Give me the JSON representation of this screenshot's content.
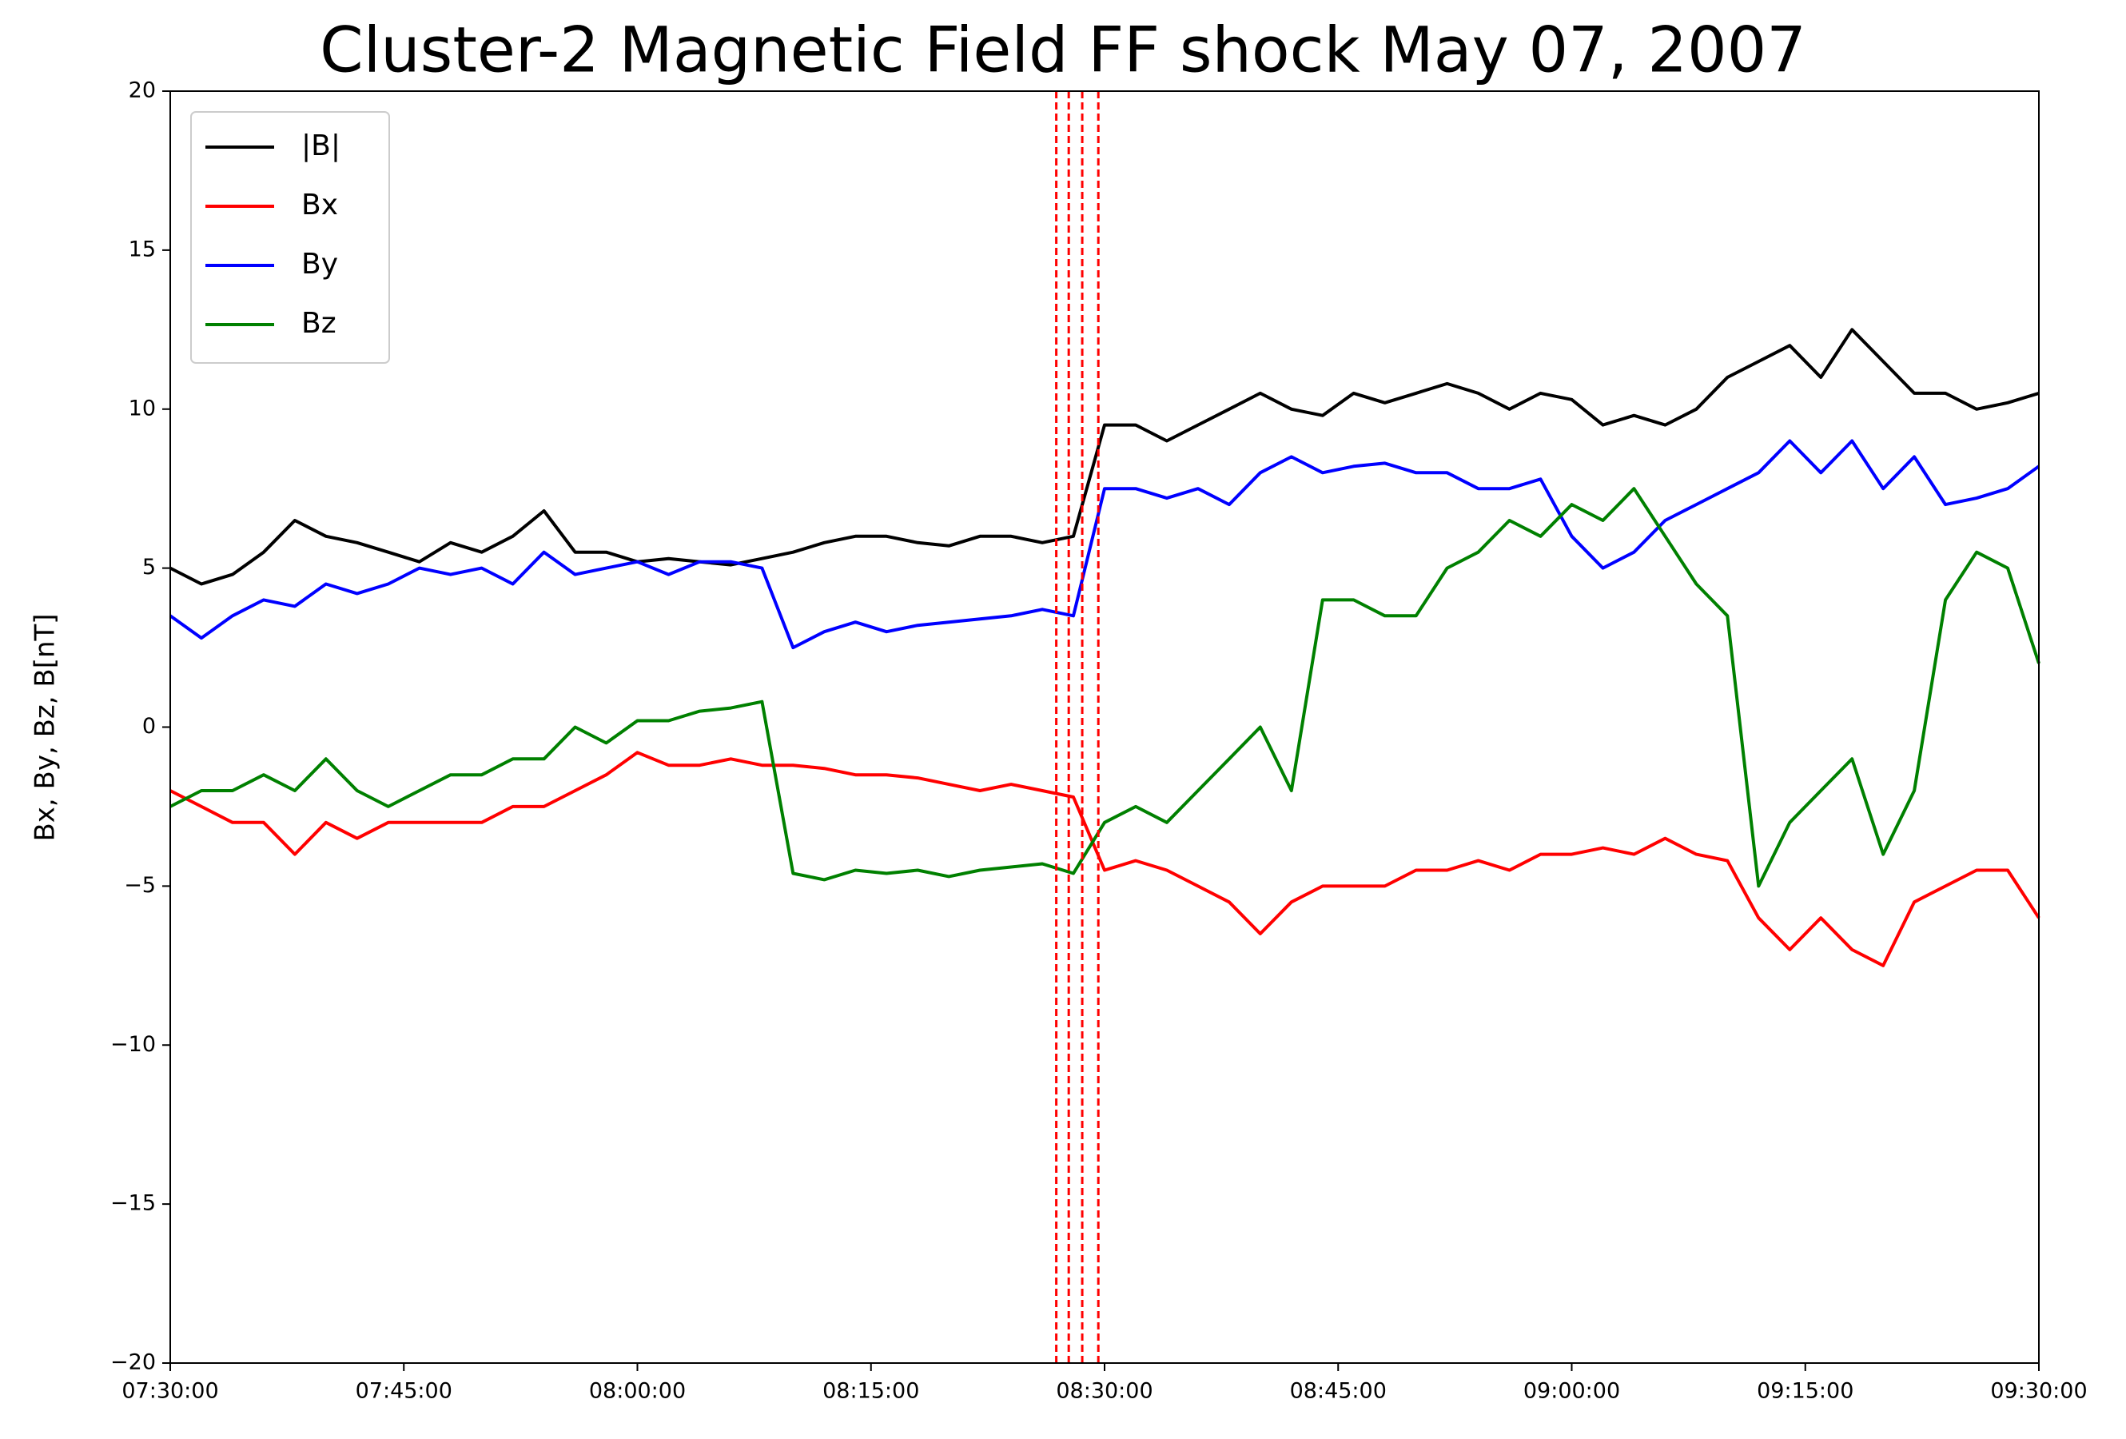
{
  "chart_data": {
    "type": "line",
    "title": "Cluster-2 Magnetic Field FF shock May 07, 2007",
    "ylabel": "Bx, By, Bz, B[nT]",
    "x": [
      "07:30:00",
      "07:32:00",
      "07:34:00",
      "07:36:00",
      "07:38:00",
      "07:40:00",
      "07:42:00",
      "07:44:00",
      "07:46:00",
      "07:48:00",
      "07:50:00",
      "07:52:00",
      "07:54:00",
      "07:56:00",
      "07:58:00",
      "08:00:00",
      "08:02:00",
      "08:04:00",
      "08:06:00",
      "08:08:00",
      "08:10:00",
      "08:12:00",
      "08:14:00",
      "08:16:00",
      "08:18:00",
      "08:20:00",
      "08:22:00",
      "08:24:00",
      "08:26:00",
      "08:28:00",
      "08:30:00",
      "08:32:00",
      "08:34:00",
      "08:36:00",
      "08:38:00",
      "08:40:00",
      "08:42:00",
      "08:44:00",
      "08:46:00",
      "08:48:00",
      "08:50:00",
      "08:52:00",
      "08:54:00",
      "08:56:00",
      "08:58:00",
      "09:00:00",
      "09:02:00",
      "09:04:00",
      "09:06:00",
      "09:08:00",
      "09:10:00",
      "09:12:00",
      "09:14:00",
      "09:16:00",
      "09:18:00",
      "09:20:00",
      "09:22:00",
      "09:24:00",
      "09:26:00",
      "09:28:00",
      "09:30:00"
    ],
    "series": [
      {
        "name": "|B|",
        "color": "#000000",
        "values": [
          5,
          4.5,
          4.8,
          5.5,
          6.5,
          6,
          5.8,
          5.5,
          5.2,
          5.8,
          5.5,
          6,
          6.8,
          5.5,
          5.5,
          5.2,
          5.3,
          5.2,
          5.1,
          5.3,
          5.5,
          5.8,
          6,
          6,
          5.8,
          5.7,
          6,
          6,
          5.8,
          6,
          9.5,
          9.5,
          9,
          9.5,
          10,
          10.5,
          10,
          9.8,
          10.5,
          10.2,
          10.5,
          10.8,
          10.5,
          10,
          10.5,
          10.3,
          9.5,
          9.8,
          9.5,
          10,
          11,
          11.5,
          12,
          11,
          12.5,
          11.5,
          10.5,
          10.5,
          10,
          10.2,
          10.5
        ]
      },
      {
        "name": "Bx",
        "color": "#ff0000",
        "values": [
          -2,
          -2.5,
          -3,
          -3,
          -4,
          -3,
          -3.5,
          -3,
          -3,
          -3,
          -3,
          -2.5,
          -2.5,
          -2,
          -1.5,
          -0.8,
          -1.2,
          -1.2,
          -1,
          -1.2,
          -1.2,
          -1.3,
          -1.5,
          -1.5,
          -1.6,
          -1.8,
          -2,
          -1.8,
          -2,
          -2.2,
          -4.5,
          -4.2,
          -4.5,
          -5,
          -5.5,
          -6.5,
          -5.5,
          -5,
          -5,
          -5,
          -4.5,
          -4.5,
          -4.2,
          -4.5,
          -4,
          -4,
          -3.8,
          -4,
          -3.5,
          -4,
          -4.2,
          -6,
          -7,
          -6,
          -7,
          -7.5,
          -5.5,
          -5,
          -4.5,
          -4.5,
          -6
        ]
      },
      {
        "name": "By",
        "color": "#0000ff",
        "values": [
          3.5,
          2.8,
          3.5,
          4,
          3.8,
          4.5,
          4.2,
          4.5,
          5,
          4.8,
          5,
          4.5,
          5.5,
          4.8,
          5,
          5.2,
          4.8,
          5.2,
          5.2,
          5,
          2.5,
          3,
          3.3,
          3,
          3.2,
          3.3,
          3.4,
          3.5,
          3.7,
          3.5,
          7.5,
          7.5,
          7.2,
          7.5,
          7,
          8,
          8.5,
          8,
          8.2,
          8.3,
          8,
          8,
          7.5,
          7.5,
          7.8,
          6,
          5,
          5.5,
          6.5,
          7,
          7.5,
          8,
          9,
          8,
          9,
          7.5,
          8.5,
          7,
          7.2,
          7.5,
          8.2
        ]
      },
      {
        "name": "Bz",
        "color": "#008000",
        "values": [
          -2.5,
          -2,
          -2,
          -1.5,
          -2,
          -1,
          -2,
          -2.5,
          -2,
          -1.5,
          -1.5,
          -1,
          -1,
          0,
          -0.5,
          0.2,
          0.2,
          0.5,
          0.6,
          0.8,
          -4.6,
          -4.8,
          -4.5,
          -4.6,
          -4.5,
          -4.7,
          -4.5,
          -4.4,
          -4.3,
          -4.6,
          -3,
          -2.5,
          -3,
          -2,
          -1,
          0,
          -2,
          4,
          4,
          3.5,
          3.5,
          5,
          5.5,
          6.5,
          6,
          7,
          6.5,
          7.5,
          6,
          4.5,
          3.5,
          -5,
          -3,
          -2,
          -1,
          -4,
          -2,
          4,
          5.5,
          5,
          2
        ]
      }
    ],
    "xlim": [
      "07:30:00",
      "09:30:00"
    ],
    "xticks": [
      "07:30:00",
      "07:45:00",
      "08:00:00",
      "08:15:00",
      "08:30:00",
      "08:45:00",
      "09:00:00",
      "09:15:00",
      "09:30:00"
    ],
    "ylim": [
      -20,
      20
    ],
    "yticks": [
      {
        "value": -20,
        "label": "−20"
      },
      {
        "value": -15,
        "label": "−15"
      },
      {
        "value": -10,
        "label": "−10"
      },
      {
        "value": -5,
        "label": "−5"
      },
      0,
      5,
      10,
      15,
      20
    ],
    "vlines": {
      "x": [
        "08:26:54",
        "08:27:42",
        "08:28:34",
        "08:29:36"
      ],
      "color": "#ff0000"
    },
    "legend": "upper left",
    "grid": false
  }
}
